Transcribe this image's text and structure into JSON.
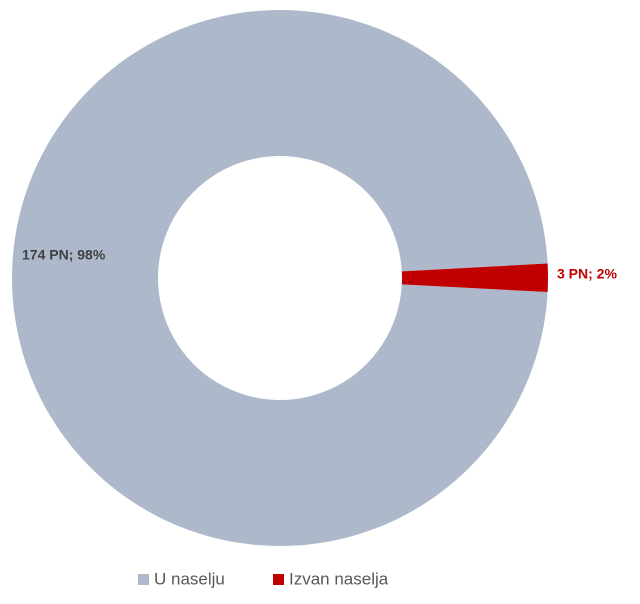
{
  "chart_data": {
    "type": "donut",
    "categories": [
      "U naselju",
      "Izvan naselja"
    ],
    "values": [
      174,
      3
    ],
    "value_labels": [
      "174 PN; 98%",
      "3 PN; 2%"
    ],
    "colors": [
      "#adb9ca",
      "#c00000"
    ],
    "label_colors": [
      "#404040",
      "#c00000"
    ],
    "legend": "bottom"
  }
}
